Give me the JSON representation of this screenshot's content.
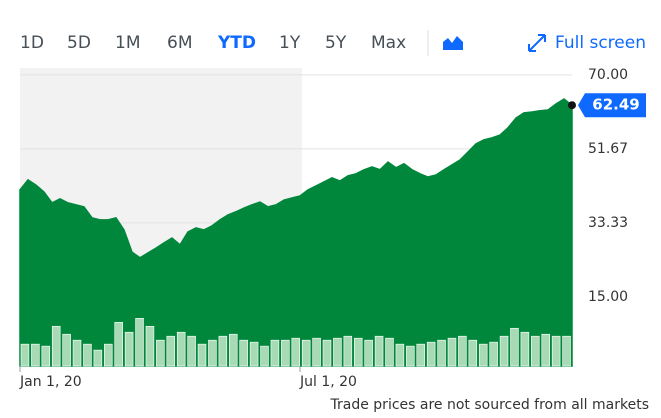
{
  "tabs": [
    "1D",
    "5D",
    "1M",
    "6M",
    "YTD",
    "1Y",
    "5Y",
    "Max"
  ],
  "selected_tab": "YTD",
  "full_screen": "Full screen",
  "note": "Trade prices are not sourced from all markets",
  "chart_data": {
    "type": "area",
    "categories": [
      "Jan 1, 20",
      null,
      null,
      null,
      null,
      null,
      null,
      null,
      null,
      null,
      null,
      null,
      null,
      null,
      null,
      null,
      null,
      null,
      null,
      null,
      null,
      null,
      null,
      null,
      null,
      null,
      null,
      null,
      null,
      null,
      null,
      null,
      null,
      null,
      null,
      "Jul 1, 20",
      null,
      null,
      null,
      null,
      null,
      null,
      null,
      null,
      null,
      null,
      null,
      null,
      null,
      null,
      null,
      null,
      null,
      null,
      null,
      null,
      null,
      null,
      null,
      null,
      null,
      null,
      null,
      null,
      null,
      null,
      null,
      null,
      null,
      null
    ],
    "series": [
      {
        "color": "#00873c",
        "values": [
          41.5,
          44,
          42.7,
          41,
          38.3,
          39.3,
          38.3,
          37.8,
          37.3,
          34.6,
          34.1,
          34.1,
          34.6,
          31.6,
          26.1,
          24.7,
          25.9,
          27.1,
          28.4,
          29.6,
          27.9,
          31.1,
          32.1,
          31.6,
          32.6,
          34.1,
          35.3,
          36.1,
          37,
          37.8,
          38.5,
          37.3,
          37.8,
          39,
          39.5,
          40,
          41.5,
          42.5,
          43.5,
          44.5,
          43.7,
          45,
          45.5,
          46.5,
          47.2,
          46.5,
          48.4,
          47,
          48,
          46.5,
          45.5,
          44.7,
          45.2,
          46.5,
          47.7,
          48.9,
          50.9,
          52.9,
          53.9,
          54.4,
          55.1,
          56.9,
          59.3,
          60.6,
          60.8,
          61.1,
          61.3,
          62.8,
          64,
          62.49
        ]
      }
    ],
    "volume": {
      "color": "#a8dab5",
      "values": [
        22,
        22,
        20,
        40,
        32,
        26,
        22,
        16,
        22,
        44,
        34,
        48,
        40,
        26,
        30,
        34,
        30,
        22,
        26,
        30,
        32,
        26,
        24,
        20,
        26,
        26,
        28,
        26,
        28,
        26,
        28,
        30,
        28,
        26,
        30,
        28,
        22,
        20,
        22,
        24,
        26,
        28,
        30,
        26,
        22,
        24,
        30,
        38,
        34,
        30,
        32,
        30,
        30
      ]
    },
    "y2lim": [
      0,
      300
    ],
    "ylim": [
      -2.1,
      71.7
    ],
    "yticks": [
      {
        "value": 70,
        "label": "70.00"
      },
      51.67,
      33.33,
      {
        "value": 15,
        "label": "15.00"
      }
    ],
    "last_value": 62.49,
    "grid": true
  }
}
